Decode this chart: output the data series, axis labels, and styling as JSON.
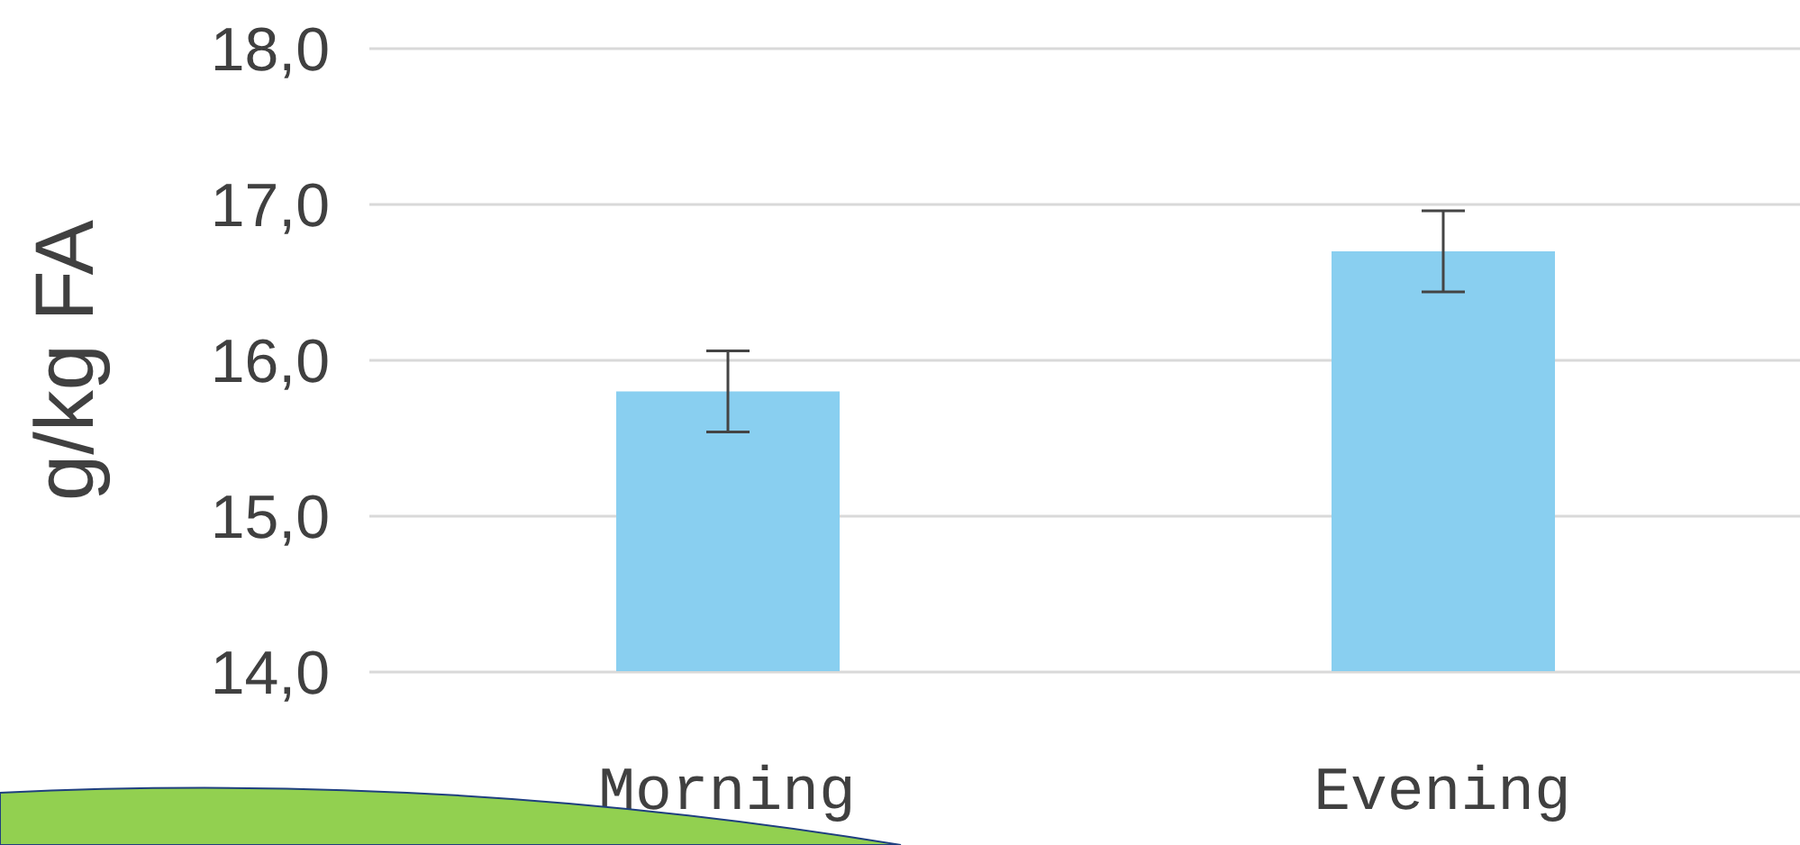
{
  "chart_data": {
    "type": "bar",
    "ylabel": "g/kg FA",
    "categories": [
      "Morning",
      "Evening"
    ],
    "values": [
      15.8,
      16.7
    ],
    "errors": [
      0.26,
      0.26
    ],
    "color": "#89cff0",
    "ylim": [
      14,
      18
    ],
    "yticks": [
      {
        "value": 14,
        "label": "14,0"
      },
      {
        "value": 15,
        "label": "15,0"
      },
      {
        "value": 16,
        "label": "16,0"
      },
      {
        "value": 17,
        "label": "17,0"
      },
      {
        "value": 18,
        "label": "18,0"
      }
    ],
    "grid": "y",
    "legend": false
  }
}
